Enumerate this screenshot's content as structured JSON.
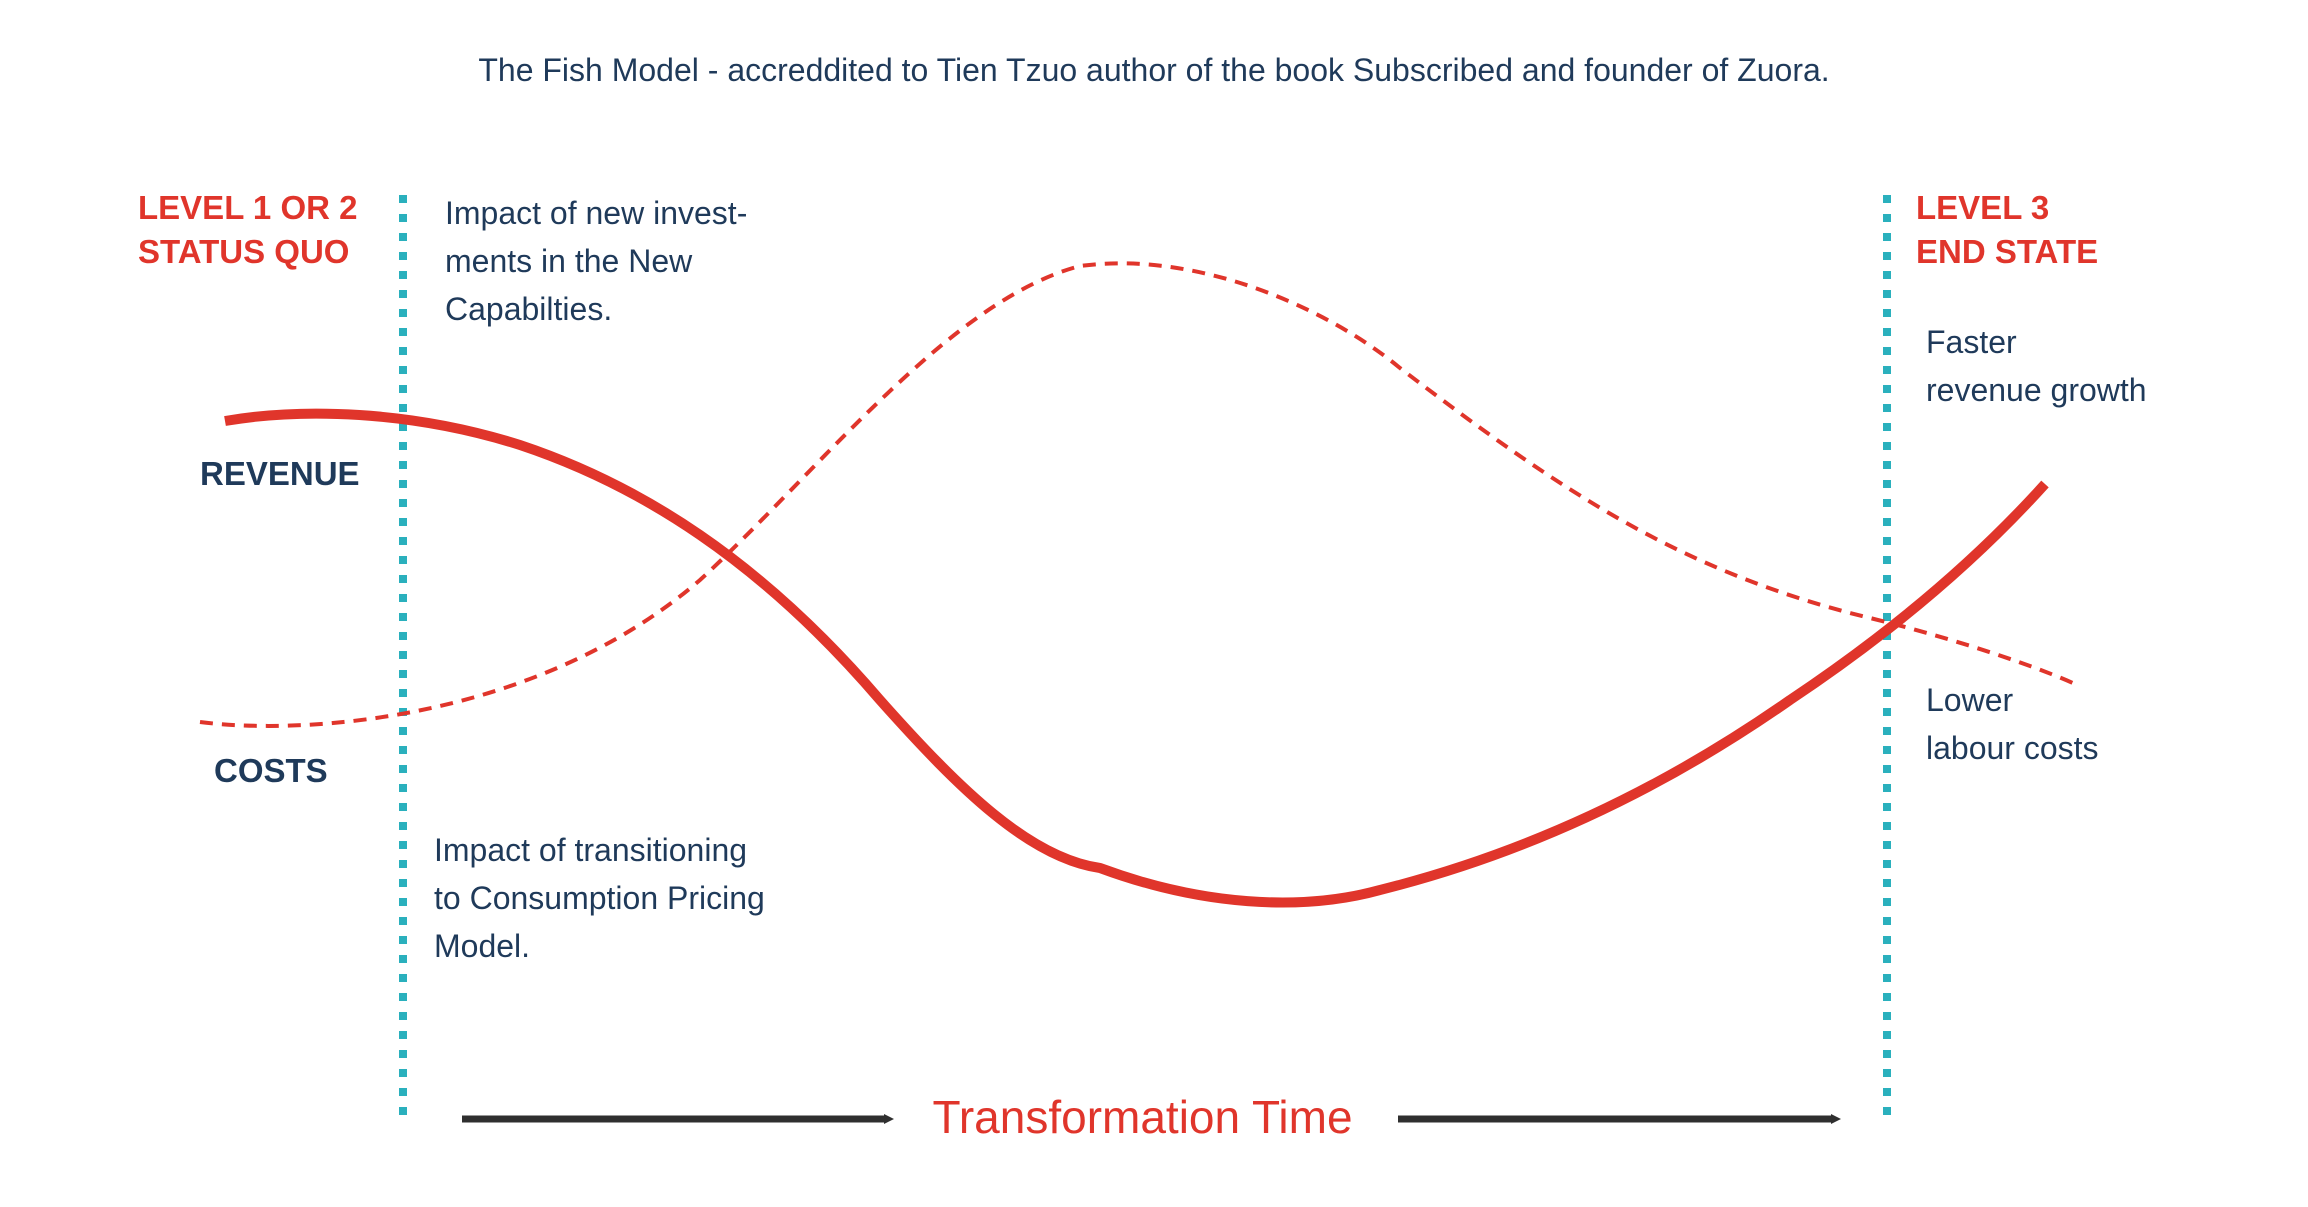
{
  "caption": "The Fish Model - accreddited to Tien Tzuo author of the book Subscribed and founder of Zuora.",
  "level_left": {
    "line1": "LEVEL 1 OR 2",
    "line2": "STATUS QUO"
  },
  "level_right": {
    "line1": "LEVEL 3",
    "line2": "END STATE"
  },
  "notes": {
    "investments": [
      "Impact of new invest-",
      "ments in the New",
      "Capabilties."
    ],
    "transitioning": [
      "Impact of transitioning",
      "to Consumption Pricing",
      "Model."
    ],
    "faster": [
      "Faster",
      "revenue growth"
    ],
    "lower": [
      "Lower",
      "labour costs"
    ]
  },
  "labels": {
    "revenue": "REVENUE",
    "costs": "COSTS"
  },
  "time_label": "Transformation Time",
  "colors": {
    "accent_red": "#e0352b",
    "navy_text": "#1f3a5a",
    "divider_teal": "#2ab0bd",
    "arrow_dark": "#2f2f2f"
  },
  "curves": {
    "revenue": {
      "style": "solid",
      "meaning": "revenue"
    },
    "costs": {
      "style": "dashed",
      "meaning": "costs"
    }
  }
}
